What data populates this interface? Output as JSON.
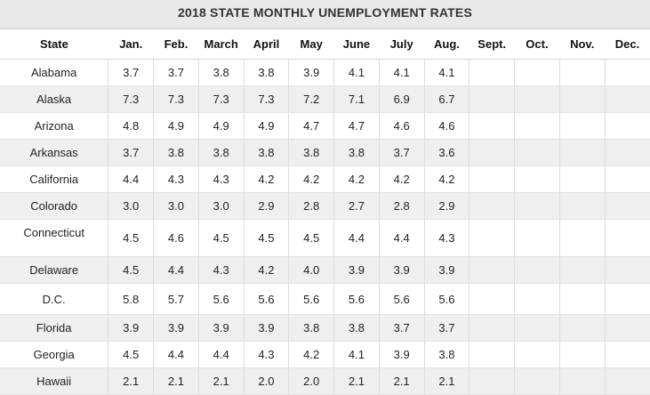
{
  "title": "2018 STATE MONTHLY UNEMPLOYMENT RATES",
  "headers": [
    "State",
    "Jan.",
    "Feb.",
    "March",
    "April",
    "May",
    "June",
    "July",
    "Aug.",
    "Sept.",
    "Oct.",
    "Nov.",
    "Dec."
  ],
  "rows": [
    {
      "state": "Alabama",
      "values": [
        "3.7",
        "3.7",
        "3.8",
        "3.8",
        "3.9",
        "4.1",
        "4.1",
        "4.1",
        "",
        "",
        "",
        ""
      ]
    },
    {
      "state": "Alaska",
      "values": [
        "7.3",
        "7.3",
        "7.3",
        "7.3",
        "7.2",
        "7.1",
        "6.9",
        "6.7",
        "",
        "",
        "",
        ""
      ]
    },
    {
      "state": "Arizona",
      "values": [
        "4.8",
        "4.9",
        "4.9",
        "4.9",
        "4.7",
        "4.7",
        "4.6",
        "4.6",
        "",
        "",
        "",
        ""
      ]
    },
    {
      "state": "Arkansas",
      "values": [
        "3.7",
        "3.8",
        "3.8",
        "3.8",
        "3.8",
        "3.8",
        "3.7",
        "3.6",
        "",
        "",
        "",
        ""
      ]
    },
    {
      "state": "California",
      "values": [
        "4.4",
        "4.3",
        "4.3",
        "4.2",
        "4.2",
        "4.2",
        "4.2",
        "4.2",
        "",
        "",
        "",
        ""
      ]
    },
    {
      "state": "Colorado",
      "values": [
        "3.0",
        "3.0",
        "3.0",
        "2.9",
        "2.8",
        "2.7",
        "2.8",
        "2.9",
        "",
        "",
        "",
        ""
      ]
    },
    {
      "state": "Connecticut",
      "values": [
        "4.5",
        "4.6",
        "4.5",
        "4.5",
        "4.5",
        "4.4",
        "4.4",
        "4.3",
        "",
        "",
        "",
        ""
      ]
    },
    {
      "state": "Delaware",
      "values": [
        "4.5",
        "4.4",
        "4.3",
        "4.2",
        "4.0",
        "3.9",
        "3.9",
        "3.9",
        "",
        "",
        "",
        ""
      ]
    },
    {
      "state": "D.C.",
      "values": [
        "5.8",
        "5.7",
        "5.6",
        "5.6",
        "5.6",
        "5.6",
        "5.6",
        "5.6",
        "",
        "",
        "",
        ""
      ]
    },
    {
      "state": "Florida",
      "values": [
        "3.9",
        "3.9",
        "3.9",
        "3.9",
        "3.8",
        "3.8",
        "3.7",
        "3.7",
        "",
        "",
        "",
        ""
      ]
    },
    {
      "state": "Georgia",
      "values": [
        "4.5",
        "4.4",
        "4.4",
        "4.3",
        "4.2",
        "4.1",
        "3.9",
        "3.8",
        "",
        "",
        "",
        ""
      ]
    },
    {
      "state": "Hawaii",
      "values": [
        "2.1",
        "2.1",
        "2.1",
        "2.0",
        "2.0",
        "2.1",
        "2.1",
        "2.1",
        "",
        "",
        "",
        ""
      ]
    }
  ]
}
